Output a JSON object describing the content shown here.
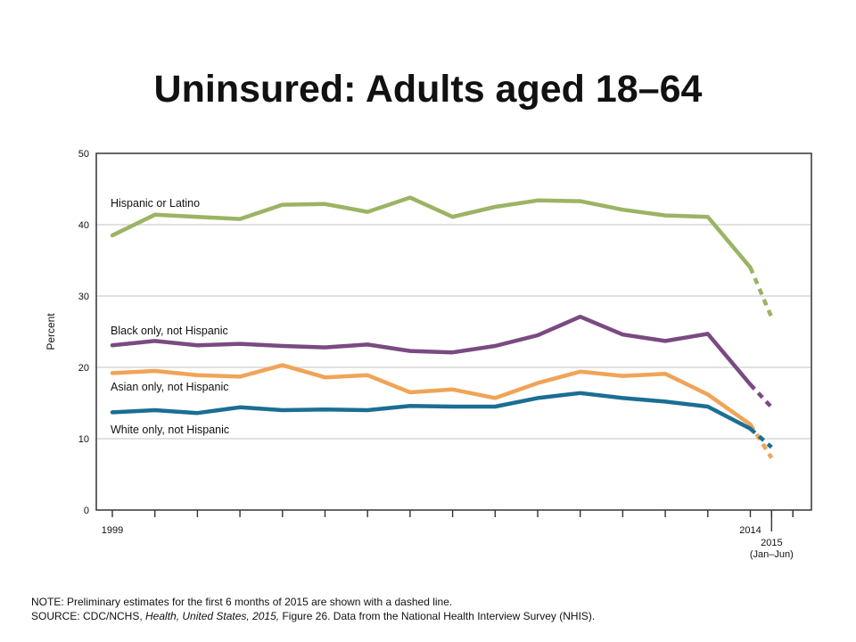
{
  "title": "Uninsured: Adults aged 18–64",
  "note": {
    "note_text": "NOTE: Preliminary estimates for the first 6 months of 2015 are shown with a dashed line.",
    "source_prefix": "SOURCE: CDC/NCHS, ",
    "source_italic": "Health, United States, 2015,",
    "source_suffix": " Figure 26. Data from the National Health Interview Survey (NHIS)."
  },
  "chart_data": {
    "type": "line",
    "title": "Uninsured: Adults aged 18–64",
    "ylabel": "Percent",
    "xlabel": "",
    "ylim": [
      0,
      50
    ],
    "yticks": [
      0,
      10,
      20,
      30,
      40,
      50
    ],
    "xlim": [
      1998.8,
      2015.9
    ],
    "x": [
      1999,
      2000,
      2001,
      2002,
      2003,
      2004,
      2005,
      2006,
      2007,
      2008,
      2009,
      2010,
      2011,
      2012,
      2013,
      2014
    ],
    "x_tick_labels": [
      {
        "x": 1999,
        "label": "1999"
      },
      {
        "x": 2014,
        "label": "2014"
      },
      {
        "x": 2014.5,
        "label": "2015",
        "sublabel": "(Jan–Jun)"
      }
    ],
    "grid": true,
    "preliminary_x": 2014.5,
    "series": [
      {
        "name": "Hispanic or Latino",
        "color": "#9bb464",
        "values": [
          38.5,
          41.4,
          41.1,
          40.8,
          42.8,
          42.9,
          41.8,
          43.8,
          41.1,
          42.5,
          43.4,
          43.3,
          42.1,
          41.3,
          41.1,
          34.0
        ],
        "preliminary": 27.0
      },
      {
        "name": "Black only, not Hispanic",
        "color": "#7a4a82",
        "values": [
          23.1,
          23.7,
          23.1,
          23.3,
          23.0,
          22.8,
          23.2,
          22.3,
          22.1,
          23.0,
          24.5,
          27.1,
          24.6,
          23.7,
          24.7,
          17.6
        ],
        "preliminary": 14.4
      },
      {
        "name": "Asian only, not Hispanic",
        "color": "#f0a457",
        "values": [
          19.2,
          19.5,
          18.9,
          18.7,
          20.3,
          18.6,
          18.9,
          16.5,
          16.9,
          15.7,
          17.8,
          19.4,
          18.8,
          19.1,
          16.2,
          12.0
        ],
        "preliminary": 7.3
      },
      {
        "name": "White only, not Hispanic",
        "color": "#1b6e94",
        "values": [
          13.7,
          14.0,
          13.6,
          14.4,
          14.0,
          14.1,
          14.0,
          14.6,
          14.5,
          14.5,
          15.7,
          16.4,
          15.7,
          15.2,
          14.5,
          11.4
        ],
        "preliminary": 8.8
      }
    ]
  }
}
